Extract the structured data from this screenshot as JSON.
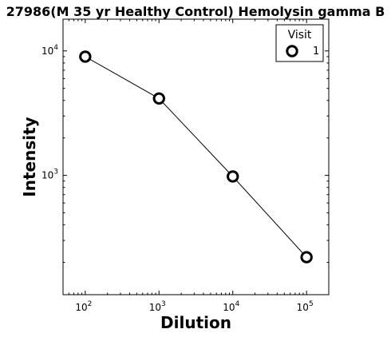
{
  "chart_data": {
    "type": "line",
    "title": "27986(M 35 yr Healthy Control) Hemolysin gamma B",
    "xlabel": "Dilution",
    "ylabel": "Intensity",
    "x_scale": "log",
    "y_scale": "log",
    "xlim": [
      50,
      200000
    ],
    "ylim": [
      110,
      18000
    ],
    "x_ticks": [
      {
        "value": 100,
        "base": "10",
        "exp": "2"
      },
      {
        "value": 1000,
        "base": "10",
        "exp": "3"
      },
      {
        "value": 10000,
        "base": "10",
        "exp": "4"
      },
      {
        "value": 100000,
        "base": "10",
        "exp": "5"
      }
    ],
    "y_ticks": [
      {
        "value": 1000,
        "base": "10",
        "exp": "3"
      },
      {
        "value": 10000,
        "base": "10",
        "exp": "4"
      }
    ],
    "grid": false,
    "legend": {
      "title": "Visit",
      "position": "top-right"
    },
    "series": [
      {
        "name": "1",
        "marker": "hollow-circle",
        "color": "#000000",
        "x": [
          100,
          1000,
          10000,
          100000
        ],
        "y": [
          9000,
          4150,
          980,
          220
        ]
      }
    ]
  }
}
